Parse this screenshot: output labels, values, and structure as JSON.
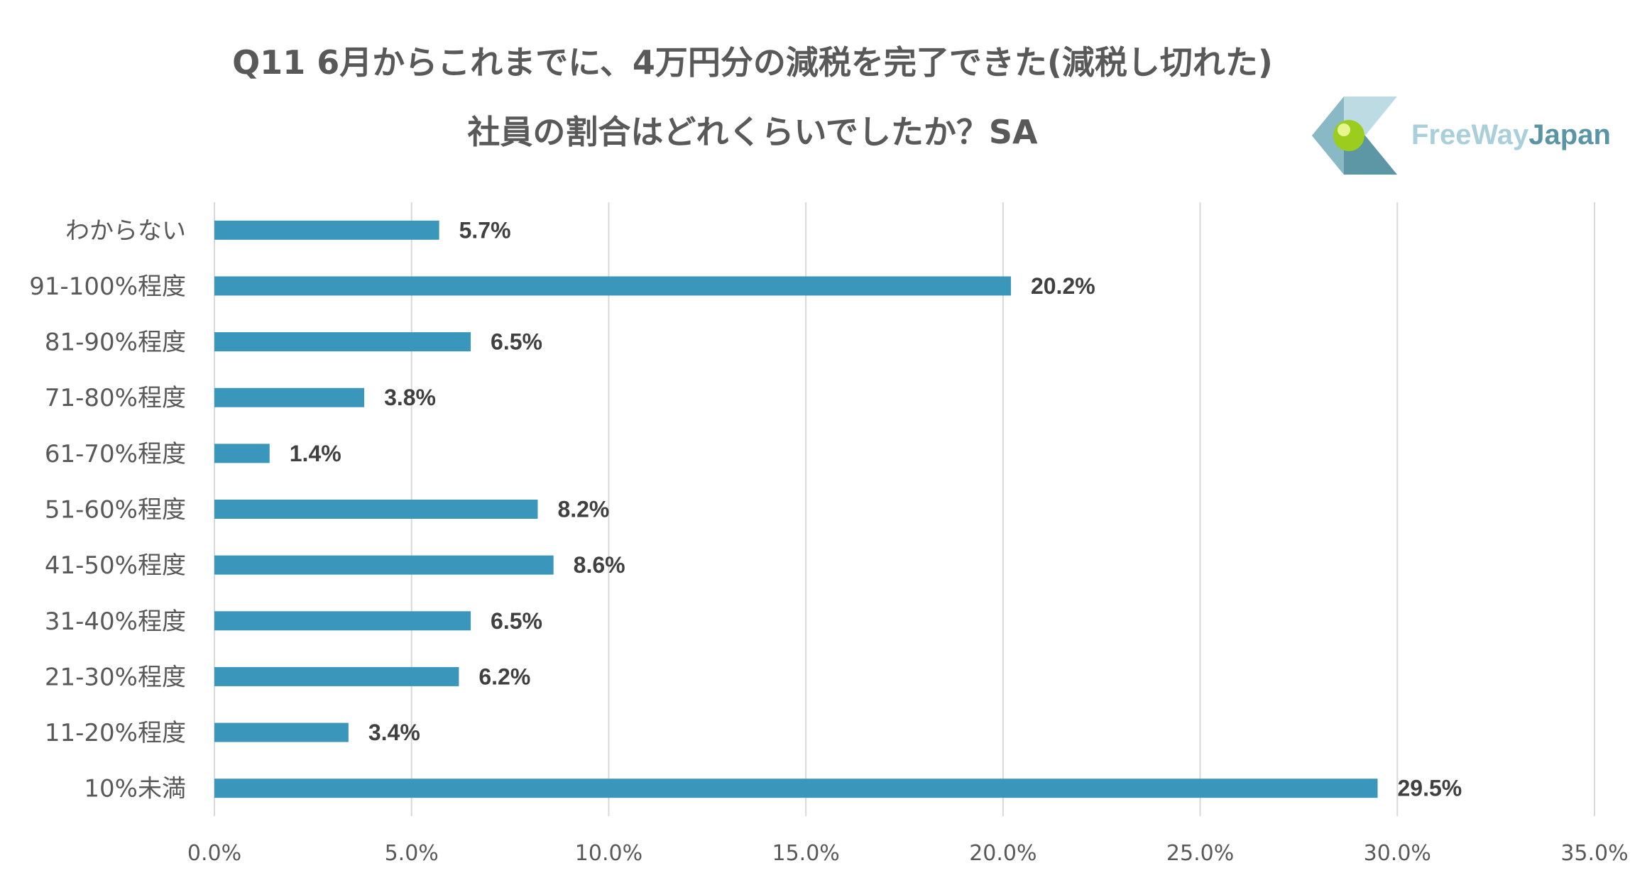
{
  "chart_data": {
    "type": "bar",
    "orientation": "horizontal",
    "title_line1": "Q11 6月からこれまでに、4万円分の減税を完了できた(減税し切れた)",
    "title_line2": "社員の割合はどれくらいでしたか？SA",
    "categories": [
      "わからない",
      "91-100%程度",
      "81-90%程度",
      "71-80%程度",
      "61-70%程度",
      "51-60%程度",
      "41-50%程度",
      "31-40%程度",
      "21-30%程度",
      "11-20%程度",
      "10%未満"
    ],
    "values": [
      5.7,
      20.2,
      6.5,
      3.8,
      1.4,
      8.2,
      8.6,
      6.5,
      6.2,
      3.4,
      29.5
    ],
    "data_labels": [
      "5.7%",
      "20.2%",
      "6.5%",
      "3.8%",
      "1.4%",
      "8.2%",
      "8.6%",
      "6.5%",
      "6.2%",
      "3.4%",
      "29.5%"
    ],
    "x_ticks": [
      "0.0%",
      "5.0%",
      "10.0%",
      "15.0%",
      "20.0%",
      "25.0%",
      "30.0%",
      "35.0%"
    ],
    "xlim": [
      0,
      35
    ],
    "grid": "vertical",
    "bar_color": "#3a96bb"
  },
  "logo": {
    "name_part1": "FreeWay",
    "name_part2": "Japan",
    "color1": "#a9cfda",
    "color2": "#5a95a6"
  }
}
